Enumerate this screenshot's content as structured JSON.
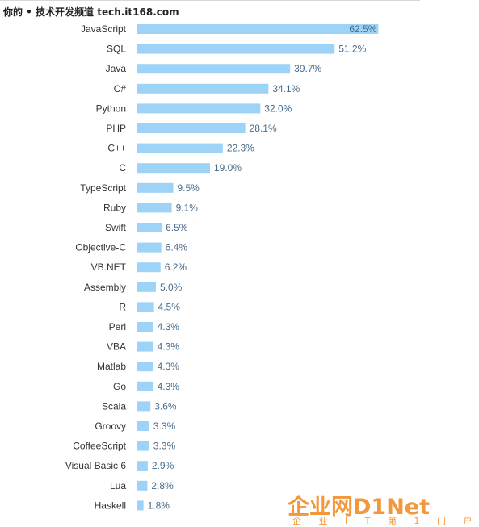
{
  "header": {
    "watermark_text": "你的 • 技术开发频道 tech.it168.com"
  },
  "logo": {
    "main_text": "企业网D1Net",
    "sub_text": "企 业 I T 第 1 门 户"
  },
  "colors": {
    "bar": "#9dd3f6",
    "category_text": "#333333",
    "value_text": "#4a6b8a",
    "logo": "#f28c28"
  },
  "chart_data": {
    "type": "bar",
    "orientation": "horizontal",
    "title": "",
    "xlabel": "",
    "ylabel": "",
    "value_suffix": "%",
    "grid": false,
    "legend": "none",
    "xlim": [
      0,
      62.5
    ],
    "categories": [
      "JavaScript",
      "SQL",
      "Java",
      "C#",
      "Python",
      "PHP",
      "C++",
      "C",
      "TypeScript",
      "Ruby",
      "Swift",
      "Objective-C",
      "VB.NET",
      "Assembly",
      "R",
      "Perl",
      "VBA",
      "Matlab",
      "Go",
      "Scala",
      "Groovy",
      "CoffeeScript",
      "Visual Basic 6",
      "Lua",
      "Haskell"
    ],
    "values": [
      62.5,
      51.2,
      39.7,
      34.1,
      32.0,
      28.1,
      22.3,
      19.0,
      9.5,
      9.1,
      6.5,
      6.4,
      6.2,
      5.0,
      4.5,
      4.3,
      4.3,
      4.3,
      4.3,
      3.6,
      3.3,
      3.3,
      2.9,
      2.8,
      1.8
    ],
    "value_labels": [
      "62.5%",
      "51.2%",
      "39.7%",
      "34.1%",
      "32.0%",
      "28.1%",
      "22.3%",
      "19.0%",
      "9.5%",
      "9.1%",
      "6.5%",
      "6.4%",
      "6.2%",
      "5.0%",
      "4.5%",
      "4.3%",
      "4.3%",
      "4.3%",
      "4.3%",
      "3.6%",
      "3.3%",
      "3.3%",
      "2.9%",
      "2.8%",
      "1.8%"
    ]
  }
}
